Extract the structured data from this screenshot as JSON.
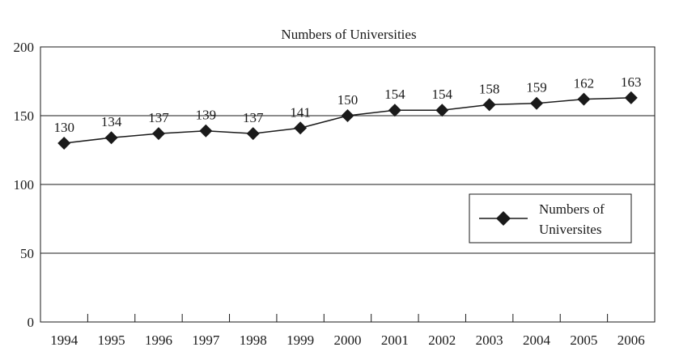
{
  "chart_data": {
    "type": "line",
    "title": "Numbers of Universities",
    "xlabel": "",
    "ylabel": "",
    "categories": [
      "1994",
      "1995",
      "1996",
      "1997",
      "1998",
      "1999",
      "2000",
      "2001",
      "2002",
      "2003",
      "2004",
      "2005",
      "2006"
    ],
    "series": [
      {
        "name": "Numbers of Universites",
        "values": [
          130,
          134,
          137,
          139,
          137,
          141,
          150,
          154,
          154,
          158,
          159,
          162,
          163
        ]
      }
    ],
    "ylim": [
      0,
      200
    ],
    "yticks": [
      0,
      50,
      100,
      150,
      200
    ],
    "grid": "horizontal",
    "legend_position": "right",
    "legend_lines": [
      "Numbers of",
      "Universites"
    ],
    "marker": "diamond",
    "colors": {
      "line": "#1a1a1a",
      "marker": "#1a1a1a",
      "grid": "#1a1a1a"
    }
  }
}
